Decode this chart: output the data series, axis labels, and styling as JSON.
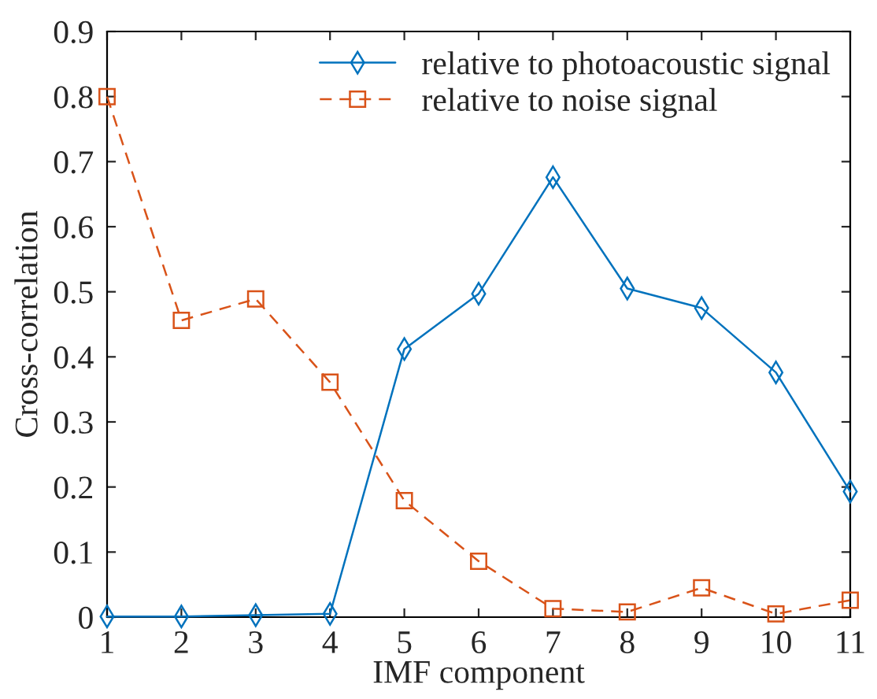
{
  "chart_data": {
    "type": "line",
    "xlabel": "IMF component",
    "ylabel": "Cross-correlation",
    "x": [
      1,
      2,
      3,
      4,
      5,
      6,
      7,
      8,
      9,
      10,
      11
    ],
    "series": [
      {
        "name": "relative to photoacoustic signal",
        "color": "#0072bd",
        "marker": "diamond",
        "line_style": "solid",
        "values": [
          0.001,
          0.001,
          0.003,
          0.005,
          0.412,
          0.497,
          0.676,
          0.505,
          0.475,
          0.376,
          0.193
        ]
      },
      {
        "name": "relative to noise signal",
        "color": "#d95319",
        "marker": "square",
        "line_style": "dashed",
        "values": [
          0.8,
          0.456,
          0.489,
          0.361,
          0.179,
          0.086,
          0.013,
          0.008,
          0.045,
          0.005,
          0.026
        ]
      }
    ],
    "xlim": [
      1,
      11
    ],
    "xticks": [
      1,
      2,
      3,
      4,
      5,
      6,
      7,
      8,
      9,
      10,
      11
    ],
    "ylim": [
      0,
      0.9
    ],
    "yticks": [
      0,
      0.1,
      0.2,
      0.3,
      0.4,
      0.5,
      0.6,
      0.7,
      0.8,
      0.9
    ],
    "grid": false,
    "legend": "top right"
  }
}
